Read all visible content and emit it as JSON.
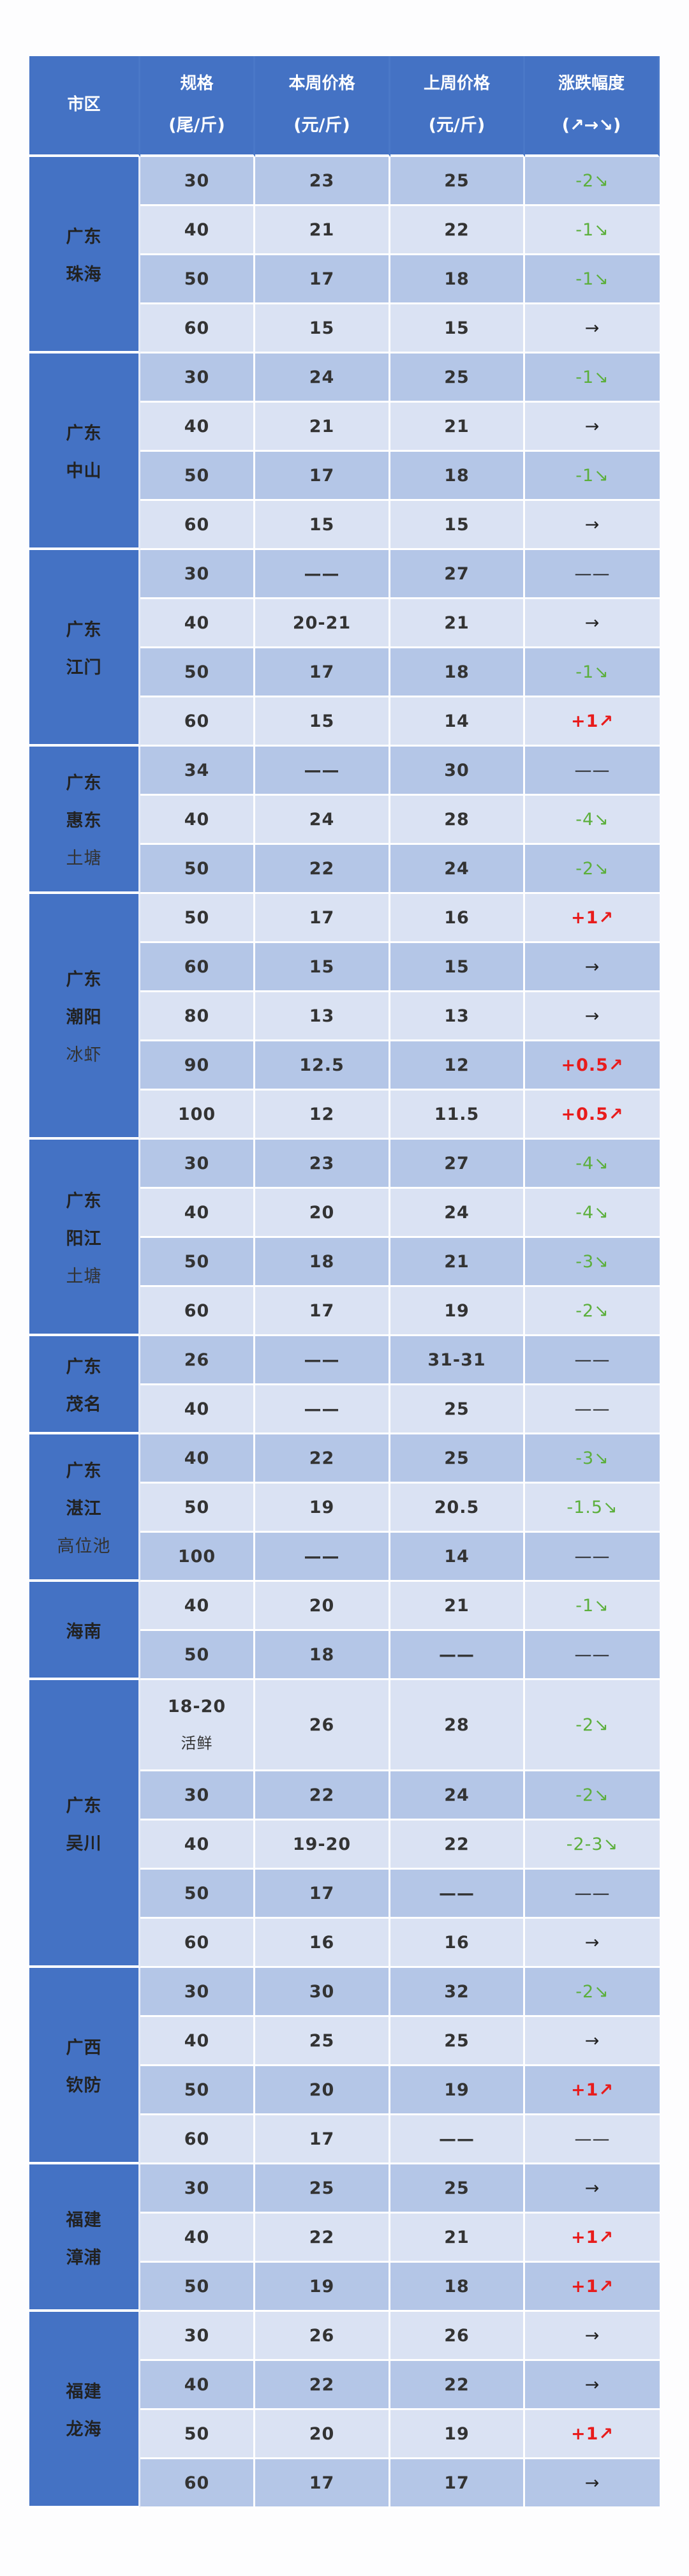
{
  "header": {
    "region": "市区",
    "spec": "规格",
    "spec_unit": "(尾/斤)",
    "this_week": "本周价格",
    "this_week_unit": "(元/斤)",
    "last_week": "上周价格",
    "last_week_unit": "(元/斤)",
    "change": "涨跌幅度",
    "change_legend": "(↗→↘)"
  },
  "colors": {
    "header": "#4472c4",
    "row_dark": "#b4c6e7",
    "row_light": "#dae2f3",
    "down": "#5caf3c",
    "up": "#e81c1c"
  },
  "groups": [
    {
      "province": "广东",
      "city": "珠海",
      "note": "",
      "rows": [
        {
          "spec": "30",
          "this_week": "23",
          "last_week": "25",
          "change": "-2",
          "trend": "down"
        },
        {
          "spec": "40",
          "this_week": "21",
          "last_week": "22",
          "change": "-1",
          "trend": "down"
        },
        {
          "spec": "50",
          "this_week": "17",
          "last_week": "18",
          "change": "-1",
          "trend": "down"
        },
        {
          "spec": "60",
          "this_week": "15",
          "last_week": "15",
          "change": "",
          "trend": "flat"
        }
      ]
    },
    {
      "province": "广东",
      "city": "中山",
      "note": "",
      "rows": [
        {
          "spec": "30",
          "this_week": "24",
          "last_week": "25",
          "change": "-1",
          "trend": "down"
        },
        {
          "spec": "40",
          "this_week": "21",
          "last_week": "21",
          "change": "",
          "trend": "flat"
        },
        {
          "spec": "50",
          "this_week": "17",
          "last_week": "18",
          "change": "-1",
          "trend": "down"
        },
        {
          "spec": "60",
          "this_week": "15",
          "last_week": "15",
          "change": "",
          "trend": "flat"
        }
      ]
    },
    {
      "province": "广东",
      "city": "江门",
      "note": "",
      "rows": [
        {
          "spec": "30",
          "this_week": "——",
          "last_week": "27",
          "change": "——",
          "trend": "none"
        },
        {
          "spec": "40",
          "this_week": "20-21",
          "last_week": "21",
          "change": "",
          "trend": "flat"
        },
        {
          "spec": "50",
          "this_week": "17",
          "last_week": "18",
          "change": "-1",
          "trend": "down"
        },
        {
          "spec": "60",
          "this_week": "15",
          "last_week": "14",
          "change": "+1",
          "trend": "up"
        }
      ]
    },
    {
      "province": "广东",
      "city": "惠东",
      "note": "土塘",
      "rows": [
        {
          "spec": "34",
          "this_week": "——",
          "last_week": "30",
          "change": "——",
          "trend": "none"
        },
        {
          "spec": "40",
          "this_week": "24",
          "last_week": "28",
          "change": "-4",
          "trend": "down"
        },
        {
          "spec": "50",
          "this_week": "22",
          "last_week": "24",
          "change": "-2",
          "trend": "down"
        }
      ]
    },
    {
      "province": "广东",
      "city": "潮阳",
      "note": "冰虾",
      "rows": [
        {
          "spec": "50",
          "this_week": "17",
          "last_week": "16",
          "change": "+1",
          "trend": "up"
        },
        {
          "spec": "60",
          "this_week": "15",
          "last_week": "15",
          "change": "",
          "trend": "flat"
        },
        {
          "spec": "80",
          "this_week": "13",
          "last_week": "13",
          "change": "",
          "trend": "flat"
        },
        {
          "spec": "90",
          "this_week": "12.5",
          "last_week": "12",
          "change": "+0.5",
          "trend": "up"
        },
        {
          "spec": "100",
          "this_week": "12",
          "last_week": "11.5",
          "change": "+0.5",
          "trend": "up"
        }
      ]
    },
    {
      "province": "广东",
      "city": "阳江",
      "note": "土塘",
      "rows": [
        {
          "spec": "30",
          "this_week": "23",
          "last_week": "27",
          "change": "-4",
          "trend": "down"
        },
        {
          "spec": "40",
          "this_week": "20",
          "last_week": "24",
          "change": "-4",
          "trend": "down"
        },
        {
          "spec": "50",
          "this_week": "18",
          "last_week": "21",
          "change": "-3",
          "trend": "down"
        },
        {
          "spec": "60",
          "this_week": "17",
          "last_week": "19",
          "change": "-2",
          "trend": "down"
        }
      ]
    },
    {
      "province": "广东",
      "city": "茂名",
      "note": "",
      "rows": [
        {
          "spec": "26",
          "this_week": "——",
          "last_week": "31-31",
          "change": "——",
          "trend": "none"
        },
        {
          "spec": "40",
          "this_week": "——",
          "last_week": "25",
          "change": "——",
          "trend": "none"
        }
      ]
    },
    {
      "province": "广东",
      "city": "湛江",
      "note": "高位池",
      "rows": [
        {
          "spec": "40",
          "this_week": "22",
          "last_week": "25",
          "change": "-3",
          "trend": "down"
        },
        {
          "spec": "50",
          "this_week": "19",
          "last_week": "20.5",
          "change": "-1.5",
          "trend": "down"
        },
        {
          "spec": "100",
          "this_week": "——",
          "last_week": "14",
          "change": "——",
          "trend": "none"
        }
      ]
    },
    {
      "province": "海南",
      "city": "",
      "note": "",
      "rows": [
        {
          "spec": "40",
          "this_week": "20",
          "last_week": "21",
          "change": "-1",
          "trend": "down"
        },
        {
          "spec": "50",
          "this_week": "18",
          "last_week": "——",
          "change": "——",
          "trend": "none"
        }
      ]
    },
    {
      "province": "广东",
      "city": "吴川",
      "note": "",
      "rows": [
        {
          "spec": "18-20",
          "spec_note": "活鲜",
          "this_week": "26",
          "last_week": "28",
          "change": "-2",
          "trend": "down"
        },
        {
          "spec": "30",
          "this_week": "22",
          "last_week": "24",
          "change": "-2",
          "trend": "down"
        },
        {
          "spec": "40",
          "this_week": "19-20",
          "last_week": "22",
          "change": "-2-3",
          "trend": "down"
        },
        {
          "spec": "50",
          "this_week": "17",
          "last_week": "——",
          "change": "——",
          "trend": "none"
        },
        {
          "spec": "60",
          "this_week": "16",
          "last_week": "16",
          "change": "",
          "trend": "flat"
        }
      ]
    },
    {
      "province": "广西",
      "city": "钦防",
      "note": "",
      "rows": [
        {
          "spec": "30",
          "this_week": "30",
          "last_week": "32",
          "change": "-2",
          "trend": "down"
        },
        {
          "spec": "40",
          "this_week": "25",
          "last_week": "25",
          "change": "",
          "trend": "flat"
        },
        {
          "spec": "50",
          "this_week": "20",
          "last_week": "19",
          "change": "+1",
          "trend": "up"
        },
        {
          "spec": "60",
          "this_week": "17",
          "last_week": "——",
          "change": "——",
          "trend": "none"
        }
      ]
    },
    {
      "province": "福建",
      "city": "漳浦",
      "note": "",
      "rows": [
        {
          "spec": "30",
          "this_week": "25",
          "last_week": "25",
          "change": "",
          "trend": "flat"
        },
        {
          "spec": "40",
          "this_week": "22",
          "last_week": "21",
          "change": "+1",
          "trend": "up"
        },
        {
          "spec": "50",
          "this_week": "19",
          "last_week": "18",
          "change": "+1",
          "trend": "up"
        }
      ]
    },
    {
      "province": "福建",
      "city": "龙海",
      "note": "",
      "rows": [
        {
          "spec": "30",
          "this_week": "26",
          "last_week": "26",
          "change": "",
          "trend": "flat"
        },
        {
          "spec": "40",
          "this_week": "22",
          "last_week": "22",
          "change": "",
          "trend": "flat"
        },
        {
          "spec": "50",
          "this_week": "20",
          "last_week": "19",
          "change": "+1",
          "trend": "up"
        },
        {
          "spec": "60",
          "this_week": "17",
          "last_week": "17",
          "change": "",
          "trend": "flat"
        }
      ]
    }
  ]
}
